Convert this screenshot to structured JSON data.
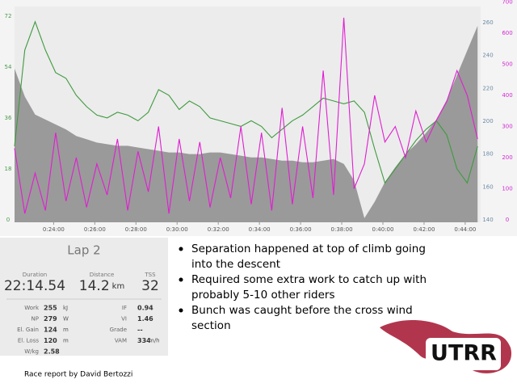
{
  "chart_data": {
    "type": "line",
    "x": [
      22.1,
      22.6,
      23.1,
      23.6,
      24.1,
      24.6,
      25.1,
      25.6,
      26.1,
      26.6,
      27.1,
      27.6,
      28.1,
      28.6,
      29.1,
      29.6,
      30.1,
      30.6,
      31.1,
      31.6,
      32.1,
      32.6,
      33.1,
      33.6,
      34.1,
      34.6,
      35.1,
      35.6,
      36.1,
      36.6,
      37.1,
      37.6,
      38.1,
      38.6,
      39.1,
      39.6,
      40.1,
      40.6,
      41.1,
      41.6,
      42.1,
      42.6,
      43.1,
      43.6,
      44.1,
      44.6
    ],
    "xlim": [
      22.1,
      44.75
    ],
    "xticks": [
      {
        "value": 24,
        "label": "0:24:00"
      },
      {
        "value": 26,
        "label": "0:26:00"
      },
      {
        "value": 28,
        "label": "0:28:00"
      },
      {
        "value": 30,
        "label": "0:30:00"
      },
      {
        "value": 32,
        "label": "0:32:00"
      },
      {
        "value": 34,
        "label": "0:34:00"
      },
      {
        "value": 36,
        "label": "0:36:00"
      },
      {
        "value": 38,
        "label": "0:38:00"
      },
      {
        "value": 40,
        "label": "0:40:00"
      },
      {
        "value": 42,
        "label": "0:42:00"
      },
      {
        "value": 44,
        "label": "0:44:00"
      }
    ],
    "ylim": [
      -0.9,
      75.4
    ],
    "yticks": [
      0,
      18,
      36,
      54,
      72
    ],
    "ycolor": "#4c9a4c",
    "y2lim": [
      138.5,
      269.8
    ],
    "y2ticks": [
      140,
      160,
      180,
      200,
      220,
      240,
      260
    ],
    "y2color": "#6d8aa6",
    "y3lim": [
      -8,
      686
    ],
    "y3ticks": [
      0,
      100,
      200,
      300,
      400,
      500,
      600,
      700
    ],
    "y3color": "#d22ad2",
    "series": [
      {
        "axis": "y2",
        "fill": "area",
        "color": "#8c8c8c",
        "values": [
          232,
          215,
          204,
          201,
          198,
          195,
          191,
          189,
          187,
          186,
          185,
          185,
          184,
          183,
          182,
          181,
          181,
          180,
          180,
          181,
          181,
          180,
          179,
          178,
          178,
          177,
          176,
          176,
          175,
          175,
          176,
          177,
          174,
          164,
          141,
          151,
          163,
          172,
          180,
          186,
          193,
          201,
          213,
          228,
          243,
          258
        ]
      },
      {
        "axis": "y",
        "color": "#3f9a3f",
        "values": [
          26,
          60,
          70,
          60,
          52,
          50,
          44,
          40,
          37,
          36,
          38,
          37,
          35,
          38,
          46,
          44,
          39,
          42,
          40,
          36,
          35,
          34,
          33,
          35,
          33,
          29,
          32,
          35,
          37,
          40,
          43,
          42,
          41,
          42,
          38,
          25,
          13,
          18,
          23,
          28,
          32,
          35,
          30,
          18,
          13,
          26
        ]
      },
      {
        "axis": "y3",
        "color": "#e01ed2",
        "values": [
          230,
          20,
          150,
          30,
          280,
          60,
          200,
          40,
          180,
          80,
          260,
          30,
          220,
          90,
          300,
          20,
          260,
          60,
          250,
          40,
          200,
          70,
          300,
          50,
          280,
          30,
          360,
          50,
          300,
          70,
          480,
          80,
          650,
          100,
          180,
          400,
          250,
          300,
          200,
          350,
          250,
          320,
          380,
          480,
          400,
          260
        ]
      }
    ]
  },
  "lap": {
    "title": "Lap 2",
    "summary": [
      {
        "label": "Duration",
        "value": "22:14.54"
      },
      {
        "label": "Distance",
        "value": "14.2",
        "unit": "km"
      },
      {
        "label": "TSS",
        "value": "32"
      }
    ],
    "left": [
      {
        "label": "Work",
        "value": "255",
        "unit": "kJ"
      },
      {
        "label": "NP",
        "value": "279",
        "unit": "W"
      },
      {
        "label": "El. Gain",
        "value": "124",
        "unit": "m"
      },
      {
        "label": "El. Loss",
        "value": "120",
        "unit": "m"
      },
      {
        "label": "W/kg",
        "value": "2.58"
      }
    ],
    "right": [
      {
        "label": "IF",
        "value": "0.94"
      },
      {
        "label": "VI",
        "value": "1.46"
      },
      {
        "label": "Grade",
        "value": "--"
      },
      {
        "label": "VAM",
        "value": "334",
        "unit": "m/h"
      }
    ]
  },
  "bullets": [
    [
      "Separation happened at top of climb going",
      "into the descent"
    ],
    [
      "Required some extra work to catch up with",
      "probably 5-10 other riders"
    ],
    [
      "Bunch was caught before the cross wind",
      "section"
    ]
  ],
  "footer": "Race report by David Bertozzi",
  "logo": "UTRR"
}
